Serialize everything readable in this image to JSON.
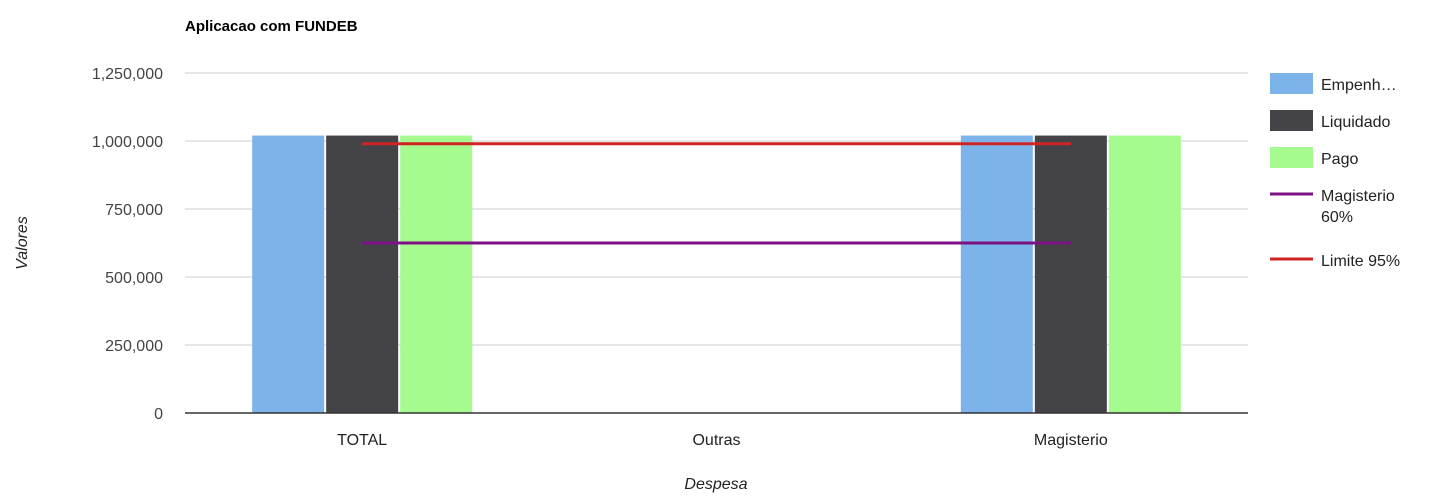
{
  "chart_data": {
    "type": "bar",
    "title": "Aplicacao com FUNDEB",
    "xlabel": "Despesa",
    "ylabel": "Valores",
    "categories": [
      "TOTAL",
      "Outras",
      "Magisterio"
    ],
    "ylim": [
      0,
      1250000
    ],
    "yticks": [
      0,
      250000,
      500000,
      750000,
      1000000,
      1250000
    ],
    "ytick_labels": [
      "0",
      "250,000",
      "500,000",
      "750,000",
      "1,000,000",
      "1,250,000"
    ],
    "grid": true,
    "legend_position": "right",
    "series": [
      {
        "name": "Empenh…",
        "type": "bar",
        "color": "#7cb4ea",
        "values": [
          1020000,
          0,
          1020000
        ]
      },
      {
        "name": "Liquidado",
        "type": "bar",
        "color": "#434348",
        "values": [
          1020000,
          0,
          1020000
        ]
      },
      {
        "name": "Pago",
        "type": "bar",
        "color": "#a6fb8f",
        "values": [
          1020000,
          0,
          1020000
        ]
      },
      {
        "name": "Magisterio 60%",
        "name_lines": [
          "Magisterio",
          "60%"
        ],
        "type": "line",
        "color": "#7b1182",
        "values": [
          625000,
          625000,
          625000
        ]
      },
      {
        "name": "Limite 95%",
        "type": "line",
        "color": "#d02424",
        "values": [
          990000,
          990000,
          990000
        ]
      }
    ]
  }
}
